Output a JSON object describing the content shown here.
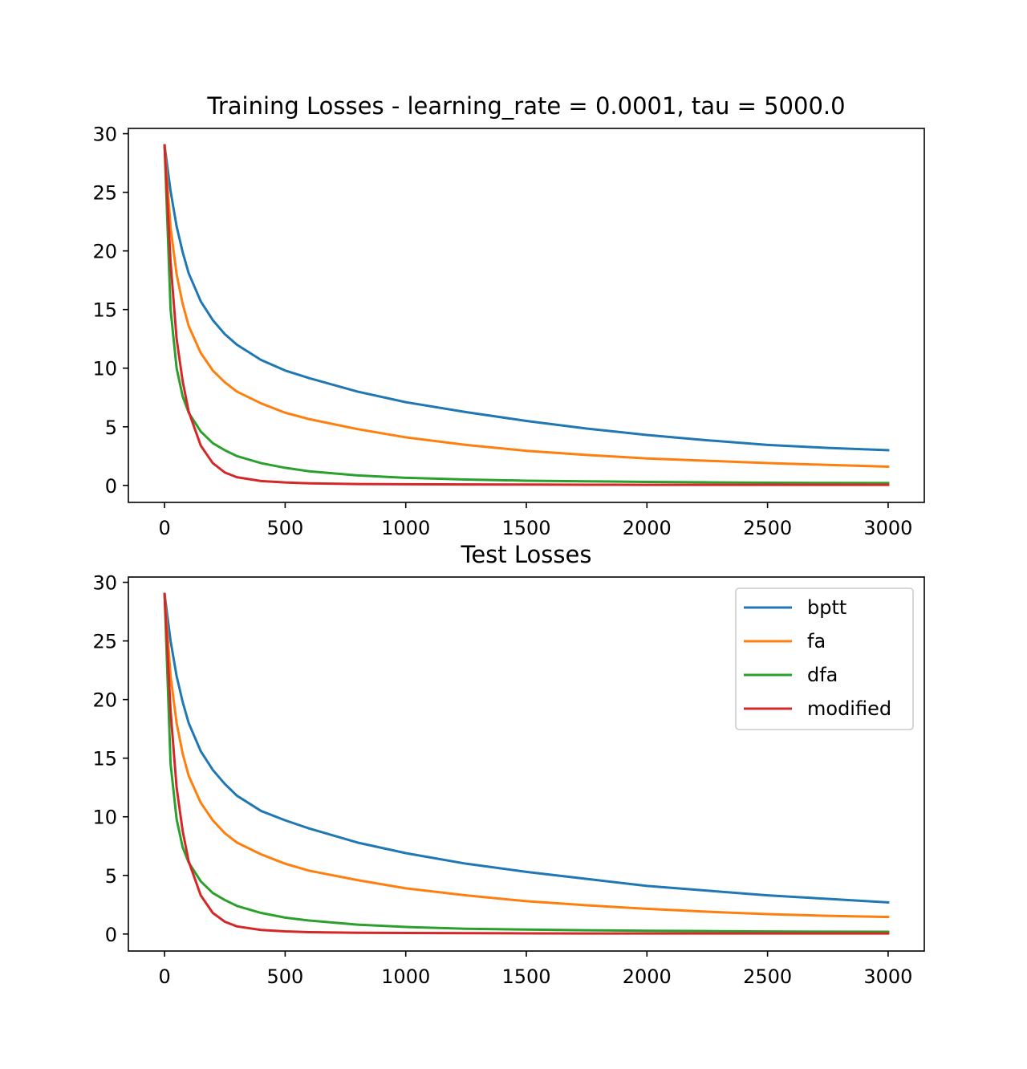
{
  "figure": {
    "colors": {
      "bptt": "#1f77b4",
      "fa": "#ff7f0e",
      "dfa": "#2ca02c",
      "modified": "#d62728"
    }
  },
  "chart_data": [
    {
      "type": "line",
      "title": "Training Losses - learning_rate = 0.0001, tau = 5000.0",
      "xlabel": "",
      "ylabel": "",
      "xlim": [
        -150,
        3150
      ],
      "ylim": [
        -1.45,
        30.45
      ],
      "xticks": [
        0,
        500,
        1000,
        1500,
        2000,
        2500,
        3000
      ],
      "yticks": [
        0,
        5,
        10,
        15,
        20,
        25,
        30
      ],
      "grid": false,
      "legend": null,
      "x": [
        0,
        25,
        50,
        75,
        100,
        150,
        200,
        250,
        300,
        400,
        500,
        600,
        800,
        1000,
        1250,
        1500,
        1750,
        2000,
        2250,
        2500,
        2750,
        3000
      ],
      "series": [
        {
          "name": "bptt",
          "color": "#1f77b4",
          "values": [
            29.0,
            25.1,
            22.1,
            19.9,
            18.1,
            15.7,
            14.1,
            12.9,
            12.0,
            10.7,
            9.8,
            9.15,
            8.0,
            7.1,
            6.25,
            5.5,
            4.85,
            4.3,
            3.85,
            3.45,
            3.2,
            3.0
          ]
        },
        {
          "name": "fa",
          "color": "#ff7f0e",
          "values": [
            29.0,
            22.0,
            18.0,
            15.5,
            13.6,
            11.3,
            9.8,
            8.8,
            8.0,
            7.0,
            6.2,
            5.65,
            4.8,
            4.1,
            3.45,
            2.95,
            2.6,
            2.3,
            2.1,
            1.9,
            1.75,
            1.6
          ]
        },
        {
          "name": "dfa",
          "color": "#2ca02c",
          "values": [
            29.0,
            15.0,
            10.0,
            7.6,
            6.2,
            4.6,
            3.6,
            3.0,
            2.5,
            1.9,
            1.5,
            1.2,
            0.85,
            0.65,
            0.5,
            0.4,
            0.35,
            0.3,
            0.26,
            0.23,
            0.21,
            0.2
          ]
        },
        {
          "name": "modified",
          "color": "#d62728",
          "values": [
            29.0,
            19.0,
            12.5,
            8.9,
            6.3,
            3.4,
            1.9,
            1.1,
            0.7,
            0.37,
            0.25,
            0.18,
            0.12,
            0.1,
            0.08,
            0.07,
            0.06,
            0.05,
            0.05,
            0.05,
            0.05,
            0.05
          ]
        }
      ]
    },
    {
      "type": "line",
      "title": "Test Losses",
      "xlabel": "",
      "ylabel": "",
      "xlim": [
        -150,
        3150
      ],
      "ylim": [
        -1.45,
        30.45
      ],
      "xticks": [
        0,
        500,
        1000,
        1500,
        2000,
        2500,
        3000
      ],
      "yticks": [
        0,
        5,
        10,
        15,
        20,
        25,
        30
      ],
      "grid": false,
      "legend": "top-right",
      "x": [
        0,
        25,
        50,
        75,
        100,
        150,
        200,
        250,
        300,
        400,
        500,
        600,
        800,
        1000,
        1250,
        1500,
        1750,
        2000,
        2250,
        2500,
        2750,
        3000
      ],
      "series": [
        {
          "name": "bptt",
          "color": "#1f77b4",
          "values": [
            29.0,
            25.0,
            22.0,
            19.8,
            18.0,
            15.6,
            14.0,
            12.8,
            11.8,
            10.5,
            9.7,
            9.0,
            7.8,
            6.9,
            6.0,
            5.3,
            4.7,
            4.1,
            3.7,
            3.3,
            3.0,
            2.7
          ]
        },
        {
          "name": "fa",
          "color": "#ff7f0e",
          "values": [
            29.0,
            22.0,
            18.0,
            15.4,
            13.5,
            11.2,
            9.7,
            8.6,
            7.8,
            6.8,
            6.0,
            5.4,
            4.6,
            3.9,
            3.3,
            2.8,
            2.45,
            2.15,
            1.9,
            1.7,
            1.55,
            1.45
          ]
        },
        {
          "name": "dfa",
          "color": "#2ca02c",
          "values": [
            29.0,
            14.5,
            9.8,
            7.4,
            6.1,
            4.5,
            3.5,
            2.9,
            2.4,
            1.8,
            1.4,
            1.15,
            0.8,
            0.6,
            0.45,
            0.38,
            0.32,
            0.28,
            0.25,
            0.22,
            0.2,
            0.19
          ]
        },
        {
          "name": "modified",
          "color": "#d62728",
          "values": [
            29.0,
            19.0,
            12.5,
            8.8,
            6.2,
            3.3,
            1.8,
            1.05,
            0.65,
            0.35,
            0.23,
            0.16,
            0.11,
            0.09,
            0.07,
            0.06,
            0.05,
            0.05,
            0.05,
            0.05,
            0.05,
            0.05
          ]
        }
      ]
    }
  ]
}
